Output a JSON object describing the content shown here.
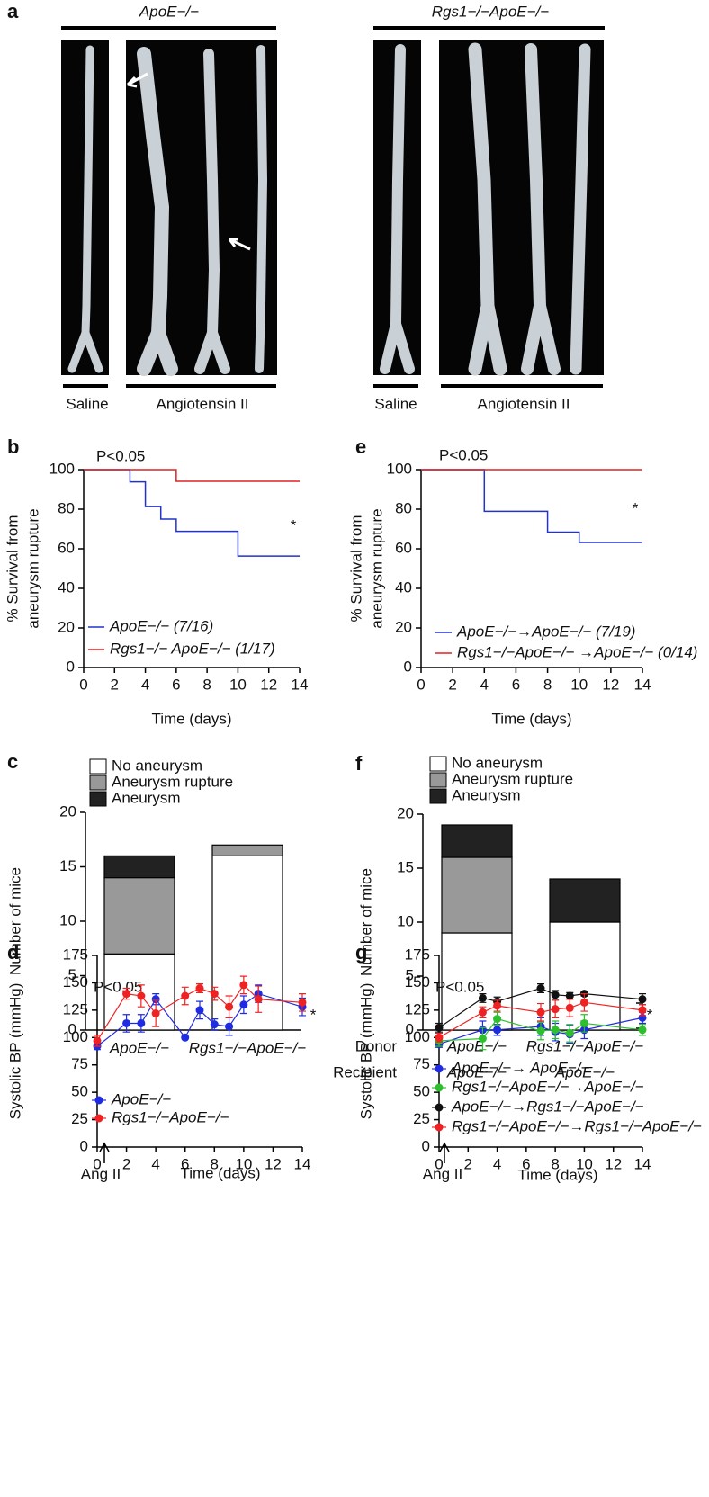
{
  "figure_panel": {
    "label": "a",
    "groups": [
      {
        "title": "ApoE−/−",
        "labels": [
          "Saline",
          "Angiotensin II"
        ]
      },
      {
        "title": "Rgs1−/−ApoE−/−",
        "labels": [
          "Saline",
          "Angiotensin II"
        ]
      }
    ]
  },
  "chart_data": [
    {
      "type": "step",
      "panel": "b",
      "ylabel": [
        "% Survival from",
        "aneurysm rupture"
      ],
      "xlabel": "Time (days)",
      "annotations": [
        "P<0.05",
        "*"
      ],
      "xlim": [
        0,
        14
      ],
      "xticks": [
        0,
        2,
        4,
        6,
        8,
        10,
        12,
        14
      ],
      "ylim": [
        0,
        100
      ],
      "yticks": [
        0,
        20,
        40,
        60,
        80,
        100
      ],
      "series": [
        {
          "name": "ApoE−/− (7/16)",
          "color": "#2233cc",
          "x": [
            0,
            3,
            4,
            5,
            6,
            10,
            14
          ],
          "values": [
            100,
            93.8,
            81.3,
            75,
            68.8,
            56.3,
            56.3
          ]
        },
        {
          "name": "Rgs1−/− ApoE−/− (1/17)",
          "color": "#e02020",
          "x": [
            0,
            6,
            14
          ],
          "values": [
            100,
            94.1,
            94.1
          ]
        }
      ]
    },
    {
      "type": "step",
      "panel": "e",
      "ylabel": [
        "% Survival from",
        "aneurysm rupture"
      ],
      "xlabel": "Time (days)",
      "annotations": [
        "P<0.05",
        "*"
      ],
      "xlim": [
        0,
        14
      ],
      "xticks": [
        0,
        2,
        4,
        6,
        8,
        10,
        12,
        14
      ],
      "ylim": [
        0,
        100
      ],
      "yticks": [
        0,
        20,
        40,
        60,
        80,
        100
      ],
      "series": [
        {
          "name": "ApoE−/−→ApoE−/− (7/19)",
          "color": "#2233cc",
          "x": [
            0,
            4,
            8,
            10,
            14
          ],
          "values": [
            100,
            78.9,
            68.4,
            63.2,
            63.2
          ]
        },
        {
          "name": "Rgs1−/−ApoE−/− →ApoE−/− (0/14)",
          "color": "#e02020",
          "x": [
            0,
            14
          ],
          "values": [
            100,
            100
          ]
        }
      ]
    },
    {
      "type": "stacked_bar",
      "panel": "c",
      "ylabel": [
        "Number of mice"
      ],
      "categories": [
        "ApoE−/−",
        "Rgs1−/−ApoE−/−"
      ],
      "ylim": [
        0,
        20
      ],
      "yticks": [
        0,
        5,
        10,
        15,
        20
      ],
      "series": [
        {
          "name": "No aneurysm",
          "color": "#ffffff",
          "values": [
            7,
            16
          ]
        },
        {
          "name": "Aneurysm rupture",
          "color": "#999999",
          "values": [
            7,
            1
          ]
        },
        {
          "name": "Aneurysm",
          "color": "#222222",
          "values": [
            2,
            0
          ]
        }
      ]
    },
    {
      "type": "stacked_bar",
      "panel": "f",
      "ylabel": [
        "Number of mice"
      ],
      "row_labels": [
        "Donor",
        "Recipient"
      ],
      "categories": [
        "ApoE−/−",
        "Rgs1−/−ApoE−/−"
      ],
      "recipients": [
        "ApoE−/−",
        "ApoE−/−"
      ],
      "ylim": [
        0,
        20
      ],
      "yticks": [
        0,
        5,
        10,
        15,
        20
      ],
      "series": [
        {
          "name": "No aneurysm",
          "color": "#ffffff",
          "values": [
            9,
            10
          ]
        },
        {
          "name": "Aneurysm rupture",
          "color": "#999999",
          "values": [
            7,
            0
          ]
        },
        {
          "name": "Aneurysm",
          "color": "#222222",
          "values": [
            3,
            4
          ]
        }
      ]
    },
    {
      "type": "line",
      "panel": "d",
      "ylabel": [
        "Systolic BP (mmHg)"
      ],
      "xlabel": "Time (days)",
      "annotations": [
        "P<0.05",
        "*",
        "Ang II"
      ],
      "xlim": [
        0,
        14
      ],
      "xticks": [
        0,
        2,
        4,
        6,
        8,
        10,
        12,
        14
      ],
      "ylim": [
        0,
        175
      ],
      "yticks": [
        0,
        25,
        50,
        75,
        100,
        125,
        150,
        175
      ],
      "series": [
        {
          "name": "ApoE−/−",
          "color": "#1f2be0",
          "x": [
            0,
            2,
            3,
            4,
            6,
            7,
            8,
            9,
            10,
            11,
            14
          ],
          "values": [
            92,
            113,
            113,
            135,
            100,
            125,
            112,
            110,
            130,
            140,
            128
          ],
          "errors": [
            3,
            8,
            8,
            5,
            0,
            8,
            5,
            8,
            8,
            8,
            8
          ]
        },
        {
          "name": "Rgs1−/−ApoE−/−",
          "color": "#ee2222",
          "x": [
            0,
            2,
            3,
            4,
            6,
            7,
            8,
            9,
            10,
            11,
            14
          ],
          "values": [
            97,
            140,
            138,
            122,
            138,
            145,
            140,
            128,
            148,
            135,
            132
          ],
          "errors": [
            5,
            5,
            10,
            12,
            8,
            4,
            6,
            10,
            8,
            12,
            8
          ]
        }
      ]
    },
    {
      "type": "line",
      "panel": "g",
      "ylabel": [
        "Systolic BP (mmHg)"
      ],
      "xlabel": "Time (days)",
      "annotations": [
        "P<0.05",
        "*",
        "Ang II"
      ],
      "xlim": [
        0,
        14
      ],
      "xticks": [
        0,
        2,
        4,
        6,
        8,
        10,
        12,
        14
      ],
      "ylim": [
        0,
        175
      ],
      "yticks": [
        0,
        25,
        50,
        75,
        100,
        125,
        150,
        175
      ],
      "series": [
        {
          "name": "ApoE−/−→ ApoE−/−",
          "color": "#1f2be0",
          "x": [
            0,
            3,
            4,
            7,
            8,
            9,
            10,
            14
          ],
          "values": [
            94,
            107,
            107,
            110,
            105,
            103,
            107,
            118
          ],
          "errors": [
            3,
            8,
            5,
            8,
            8,
            8,
            8,
            5
          ]
        },
        {
          "name": "Rgs1−/−ApoE−/−→ApoE−/−",
          "color": "#2ebf2e",
          "x": [
            0,
            3,
            4,
            7,
            8,
            9,
            10,
            14
          ],
          "values": [
            97,
            99,
            117,
            106,
            107,
            104,
            113,
            107
          ],
          "errors": [
            5,
            10,
            6,
            8,
            8,
            8,
            8,
            5
          ]
        },
        {
          "name": "ApoE−/−→Rgs1−/−ApoE−/−",
          "color": "#111111",
          "x": [
            0,
            3,
            4,
            7,
            8,
            9,
            10,
            14
          ],
          "values": [
            109,
            136,
            133,
            145,
            139,
            138,
            140,
            135
          ],
          "errors": [
            4,
            4,
            4,
            4,
            4,
            3,
            2,
            5
          ]
        },
        {
          "name": "Rgs1−/−ApoE−/−→Rgs1−/−ApoE−/−",
          "color": "#ee2222",
          "x": [
            0,
            3,
            4,
            7,
            8,
            9,
            10,
            14
          ],
          "values": [
            100,
            123,
            129,
            123,
            126,
            127,
            132,
            125
          ],
          "errors": [
            4,
            5,
            5,
            8,
            8,
            8,
            8,
            5
          ]
        }
      ]
    }
  ]
}
